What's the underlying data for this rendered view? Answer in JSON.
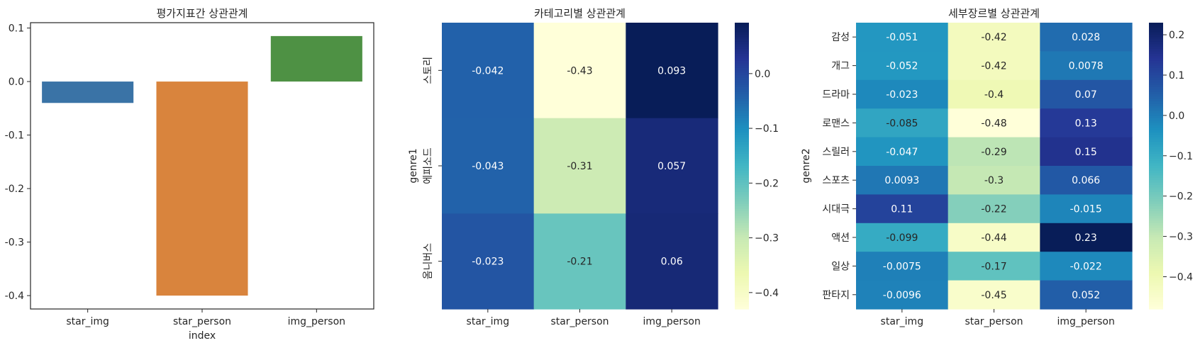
{
  "chart_data": [
    {
      "type": "bar",
      "title": "평가지표간 상관관계",
      "xlabel": "index",
      "ylabel": "",
      "categories": [
        "star_img",
        "star_person",
        "img_person"
      ],
      "values": [
        -0.04,
        -0.4,
        0.085
      ],
      "colors": [
        "#3a73a6",
        "#d9843d",
        "#4e9144"
      ],
      "ylim": [
        -0.425,
        0.11
      ],
      "yticks": [
        0.1,
        0.0,
        -0.1,
        -0.2,
        -0.3,
        -0.4
      ],
      "ytick_labels": [
        "0.1",
        "0.0",
        "-0.1",
        "-0.2",
        "-0.3",
        "-0.4"
      ],
      "grid": false,
      "legend": "none"
    },
    {
      "type": "heatmap",
      "title": "카테고리별 상관관계",
      "xlabel": "",
      "ylabel": "genre1",
      "columns": [
        "star_img",
        "star_person",
        "img_person"
      ],
      "rows": [
        "스토리",
        "에피소드",
        "옴니버스"
      ],
      "values": [
        [
          -0.042,
          -0.43,
          0.093
        ],
        [
          -0.043,
          -0.31,
          0.057
        ],
        [
          -0.023,
          -0.21,
          0.06
        ]
      ],
      "labels": [
        [
          "-0.042",
          "-0.43",
          "0.093"
        ],
        [
          "-0.043",
          "-0.31",
          "0.057"
        ],
        [
          "-0.023",
          "-0.21",
          "0.06"
        ]
      ],
      "colormap": "YlGnBu",
      "vmin": -0.43,
      "vmax": 0.093,
      "colorbar_ticks": [
        0.0,
        -0.1,
        -0.2,
        -0.3,
        -0.4
      ],
      "colorbar_tick_labels": [
        "0.0",
        "−0.1",
        "−0.2",
        "−0.3",
        "−0.4"
      ]
    },
    {
      "type": "heatmap",
      "title": "세부장르별 상관관계",
      "xlabel": "",
      "ylabel": "genre2",
      "columns": [
        "star_img",
        "star_person",
        "img_person"
      ],
      "rows": [
        "감성",
        "개그",
        "드라마",
        "로맨스",
        "스릴러",
        "스포츠",
        "시대극",
        "액션",
        "일상",
        "판타지"
      ],
      "values": [
        [
          -0.051,
          -0.42,
          0.028
        ],
        [
          -0.052,
          -0.42,
          0.0078
        ],
        [
          -0.023,
          -0.4,
          0.07
        ],
        [
          -0.085,
          -0.48,
          0.13
        ],
        [
          -0.047,
          -0.29,
          0.15
        ],
        [
          0.0093,
          -0.3,
          0.066
        ],
        [
          0.11,
          -0.22,
          -0.015
        ],
        [
          -0.099,
          -0.44,
          0.23
        ],
        [
          -0.0075,
          -0.17,
          -0.022
        ],
        [
          -0.0096,
          -0.45,
          0.052
        ]
      ],
      "labels": [
        [
          "-0.051",
          "-0.42",
          "0.028"
        ],
        [
          "-0.052",
          "-0.42",
          "0.0078"
        ],
        [
          "-0.023",
          "-0.4",
          "0.07"
        ],
        [
          "-0.085",
          "-0.48",
          "0.13"
        ],
        [
          "-0.047",
          "-0.29",
          "0.15"
        ],
        [
          "0.0093",
          "-0.3",
          "0.066"
        ],
        [
          "0.11",
          "-0.22",
          "-0.015"
        ],
        [
          "-0.099",
          "-0.44",
          "0.23"
        ],
        [
          "-0.0075",
          "-0.17",
          "-0.022"
        ],
        [
          "-0.0096",
          "-0.45",
          "0.052"
        ]
      ],
      "colormap": "YlGnBu",
      "vmin": -0.48,
      "vmax": 0.23,
      "colorbar_ticks": [
        0.2,
        0.1,
        0.0,
        -0.1,
        -0.2,
        -0.3,
        -0.4
      ],
      "colorbar_tick_labels": [
        "0.2",
        "0.1",
        "0.0",
        "−0.1",
        "−0.2",
        "−0.3",
        "−0.4"
      ]
    }
  ]
}
